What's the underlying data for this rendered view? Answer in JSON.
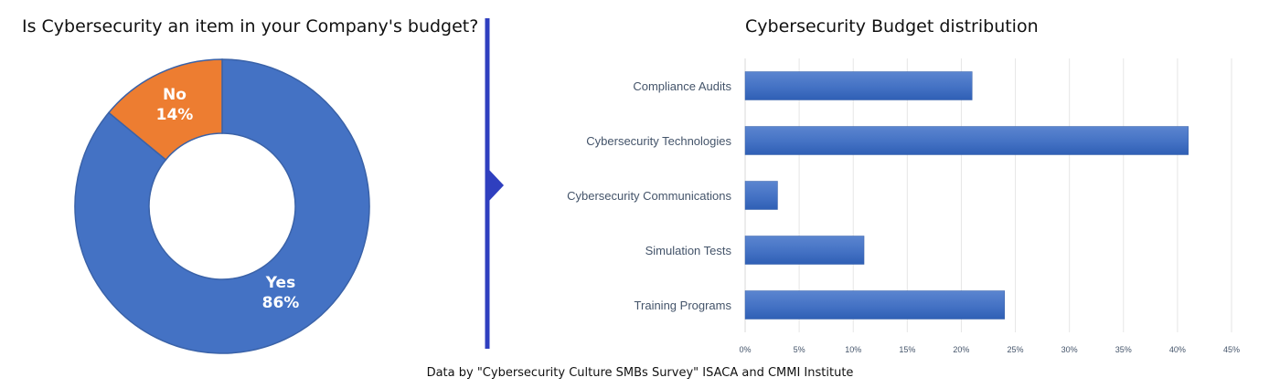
{
  "footer": "Data by \"Cybersecurity Culture SMBs Survey\" ISACA and CMMI Institute",
  "chart_data": [
    {
      "type": "pie",
      "title": "Is Cybersecurity an item in your Company's budget?",
      "donut": true,
      "slices": [
        {
          "label": "Yes",
          "value": 86,
          "display": "86%",
          "color": "#4472c4"
        },
        {
          "label": "No",
          "value": 14,
          "display": "14%",
          "color": "#ed7d31"
        }
      ]
    },
    {
      "type": "bar",
      "orientation": "horizontal",
      "title": "Cybersecurity Budget distribution",
      "categories": [
        "Compliance Audits",
        "Cybersecurity Technologies",
        "Cybersecurity Communications",
        "Simulation Tests",
        "Training Programs"
      ],
      "values": [
        21,
        41,
        3,
        11,
        24
      ],
      "unit": "%",
      "xlim": [
        0,
        45
      ],
      "xticks": [
        "0%",
        "5%",
        "10%",
        "15%",
        "20%",
        "25%",
        "30%",
        "35%",
        "40%",
        "45%"
      ],
      "grid": true,
      "bar_color": "#4472c4"
    }
  ],
  "colors": {
    "divider": "#2f3fbf",
    "grid": "#e6e6e6"
  }
}
